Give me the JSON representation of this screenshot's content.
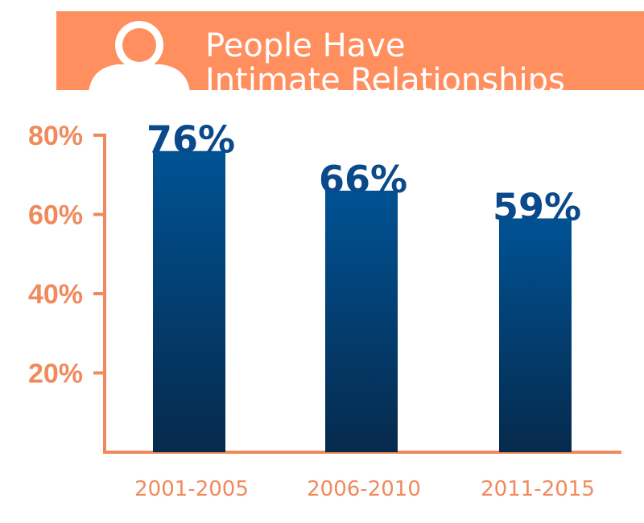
{
  "header": {
    "title_line1": "People Have",
    "title_line2": "Intimate Relationships",
    "icon": "person-icon"
  },
  "colors": {
    "accent": "#FF8F5E",
    "axis": "#F08A5D",
    "bar_top": "#005294",
    "bar_bottom": "#062A4C",
    "value_text": "#0A4A8A"
  },
  "chart_data": {
    "type": "bar",
    "title": "People Have Intimate Relationships",
    "categories": [
      "2001-2005",
      "2006-2010",
      "2011-2015"
    ],
    "values": [
      76,
      66,
      59
    ],
    "value_labels": [
      "76%",
      "66%",
      "59%"
    ],
    "yticks": [
      20,
      40,
      60,
      80
    ],
    "ytick_labels": [
      "20%",
      "40%",
      "60%",
      "80%"
    ],
    "ylim": [
      0,
      80
    ],
    "xlabel": "",
    "ylabel": "",
    "grid": false,
    "legend": "none"
  }
}
